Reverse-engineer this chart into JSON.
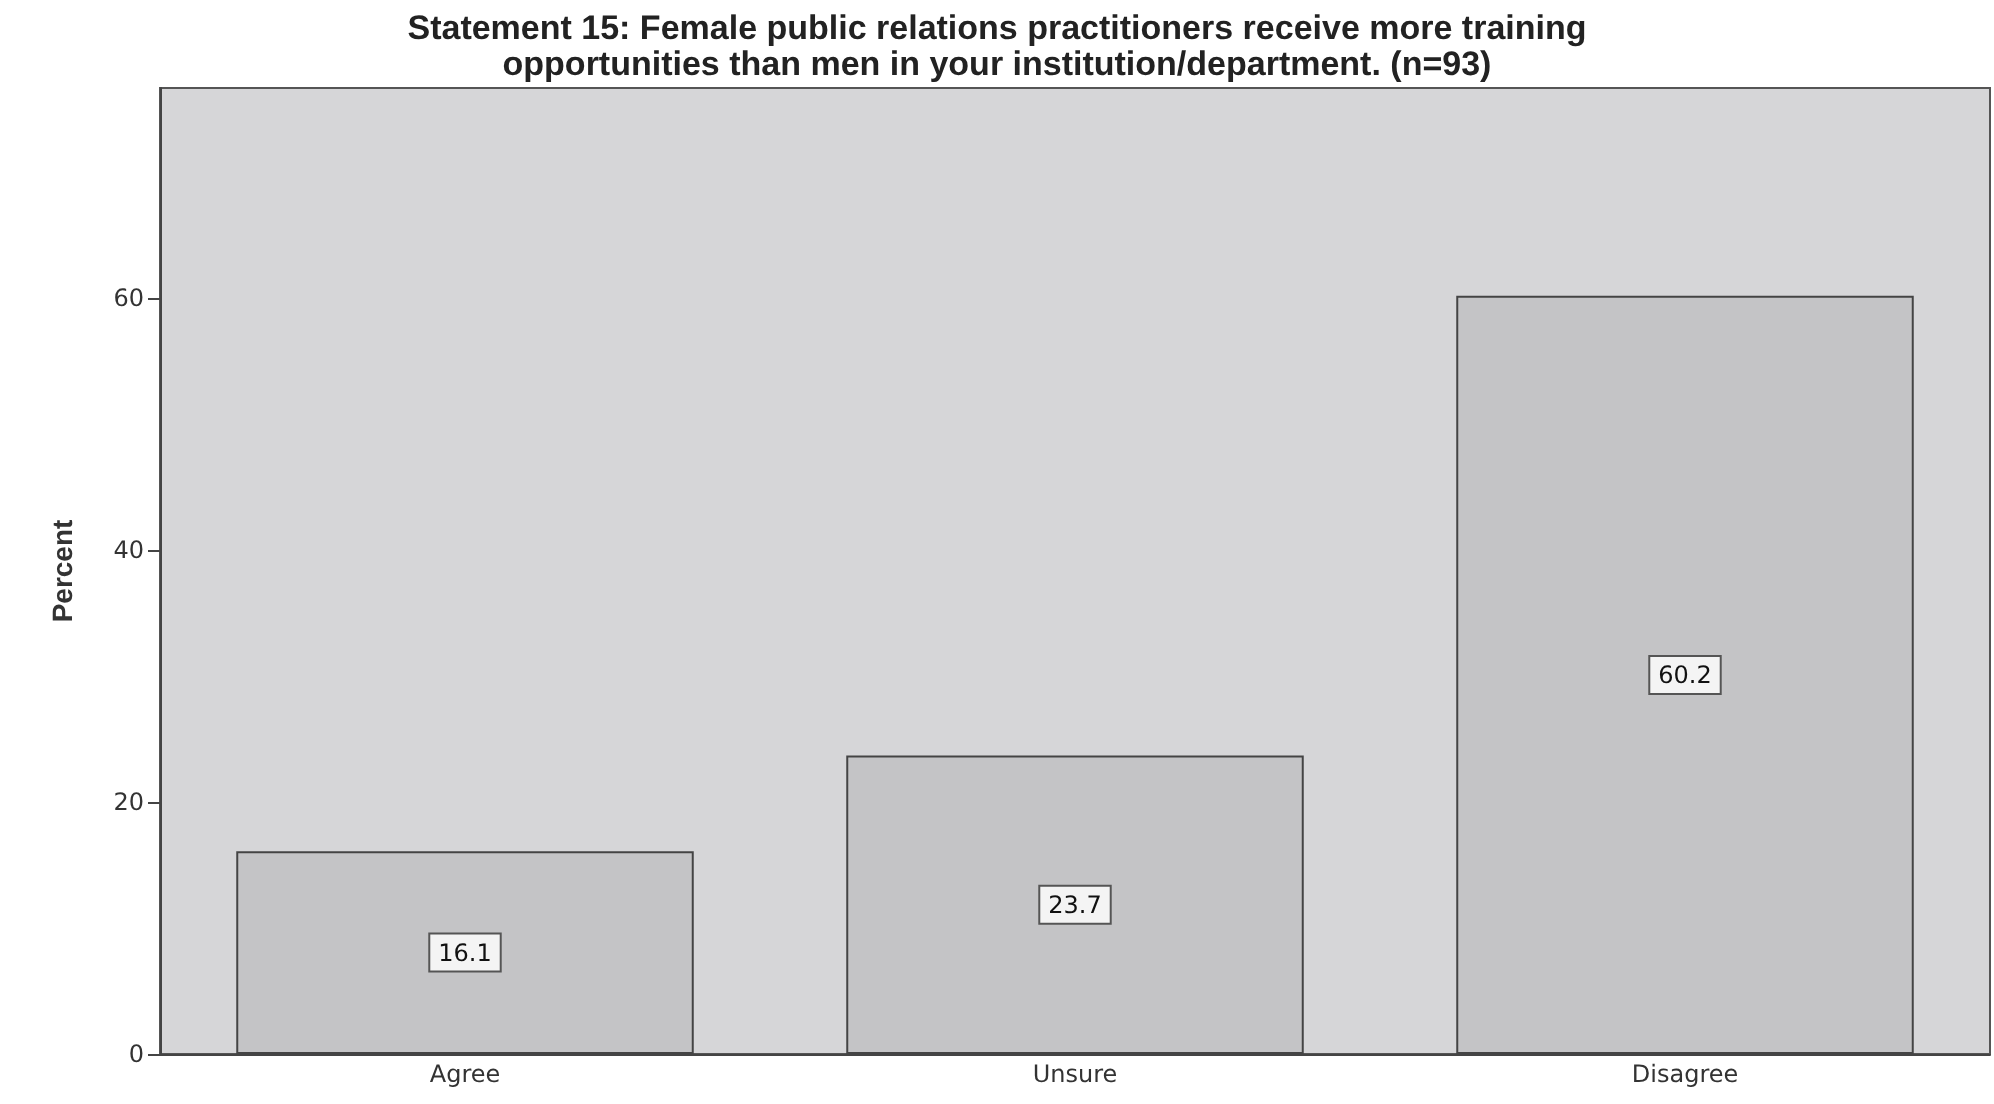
{
  "chart_data": {
    "type": "bar",
    "title": "Statement 15: Female public relations practitioners receive more training\nopportunities than men in your institution/department. (n=93)",
    "ylabel": "Percent",
    "categories": [
      "Agree",
      "Unsure",
      "Disagree"
    ],
    "values": [
      16.1,
      23.7,
      60.2
    ],
    "color": "#c4c4c6",
    "ylim": [
      0,
      76.7
    ],
    "yticks": [
      0,
      20,
      40,
      60
    ],
    "grid": false,
    "data_labels": true
  }
}
